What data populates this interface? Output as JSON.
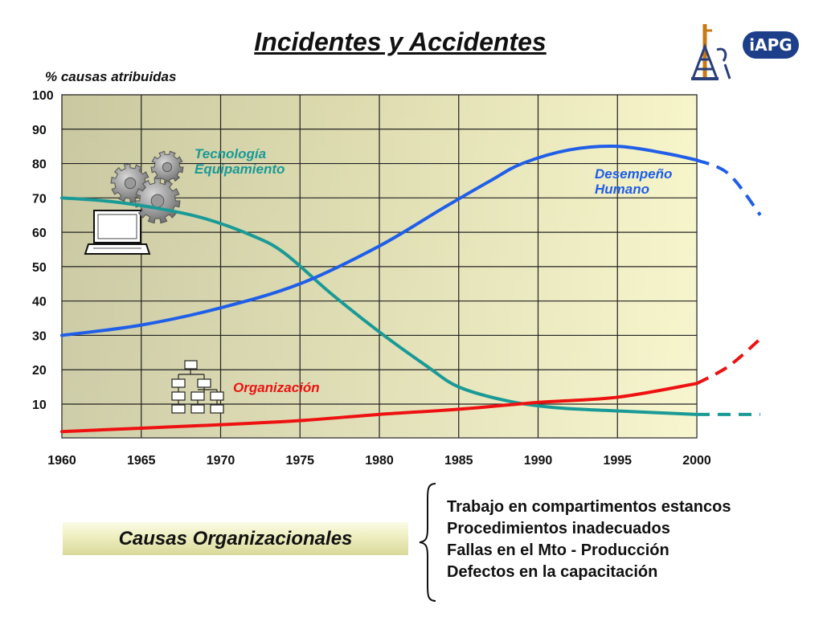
{
  "page": {
    "title": "Incidentes y Accidentes",
    "causas_label": "Causas Organizacionales",
    "causes": [
      "Trabajo en compartimentos estancos",
      "Procedimientos inadecuados",
      "Fallas en el Mto - Producción",
      "Defectos en la capacitación"
    ],
    "logo_text": "iAPG"
  },
  "chart_data": {
    "type": "line",
    "title": "Incidentes y Accidentes",
    "ylabel": "% causas atribuidas",
    "xlabel": "",
    "xlim": [
      1960,
      2000
    ],
    "ylim": [
      0,
      100
    ],
    "x_ticks": [
      1960,
      1965,
      1970,
      1975,
      1980,
      1985,
      1990,
      1995,
      2000
    ],
    "y_ticks": [
      10,
      20,
      30,
      40,
      50,
      60,
      70,
      80,
      90,
      100
    ],
    "grid": true,
    "series": [
      {
        "name": "Tecnología Equipamiento",
        "label_lines": [
          "Tecnología",
          "Equipamiento"
        ],
        "color": "#1a9a96",
        "points": [
          [
            1960,
            70
          ],
          [
            1963,
            69
          ],
          [
            1966,
            67
          ],
          [
            1969,
            64
          ],
          [
            1972,
            59
          ],
          [
            1974,
            54
          ],
          [
            1977,
            42
          ],
          [
            1980,
            31
          ],
          [
            1983,
            21
          ],
          [
            1985,
            15
          ],
          [
            1988,
            11
          ],
          [
            1991,
            9
          ],
          [
            1995,
            8
          ],
          [
            2000,
            7
          ]
        ],
        "projection": [
          [
            2000,
            7
          ],
          [
            2004,
            7
          ]
        ]
      },
      {
        "name": "Desempeño Humano",
        "label_lines": [
          "Desempeño",
          "Humano"
        ],
        "color": "#1f5ee8",
        "points": [
          [
            1960,
            30
          ],
          [
            1965,
            33
          ],
          [
            1970,
            38
          ],
          [
            1975,
            45
          ],
          [
            1980,
            56
          ],
          [
            1984,
            67
          ],
          [
            1987,
            75
          ],
          [
            1989,
            80
          ],
          [
            1992,
            84
          ],
          [
            1995,
            85
          ],
          [
            1998,
            83
          ],
          [
            2000,
            81
          ]
        ],
        "projection": [
          [
            2000,
            81
          ],
          [
            2002,
            77
          ],
          [
            2004,
            65
          ]
        ]
      },
      {
        "name": "Organización",
        "label_lines": [
          "Organización"
        ],
        "color": "#ee1111",
        "points": [
          [
            1960,
            2
          ],
          [
            1965,
            3
          ],
          [
            1970,
            4
          ],
          [
            1975,
            5.2
          ],
          [
            1980,
            7
          ],
          [
            1985,
            8.5
          ],
          [
            1990,
            10.5
          ],
          [
            1995,
            12
          ],
          [
            2000,
            16
          ]
        ],
        "projection": [
          [
            2000,
            16
          ],
          [
            2002,
            21
          ],
          [
            2004,
            29
          ]
        ]
      }
    ]
  }
}
